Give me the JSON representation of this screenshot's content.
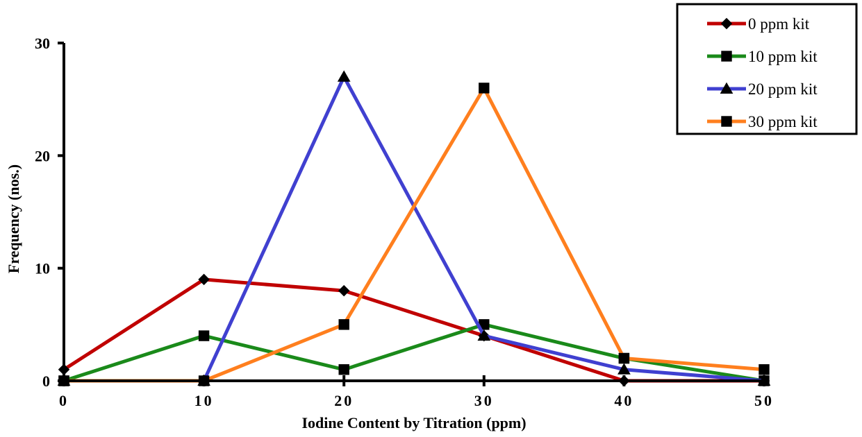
{
  "chart_data": {
    "type": "line",
    "title": "",
    "xlabel": "Iodine Content by Titration (ppm)",
    "ylabel": "Frequency (nos.)",
    "x": [
      0,
      10,
      20,
      30,
      40,
      50
    ],
    "xlim": [
      0,
      50
    ],
    "ylim": [
      0,
      30
    ],
    "xticks": [
      0,
      10,
      20,
      30,
      40,
      50
    ],
    "yticks": [
      0,
      10,
      20,
      30
    ],
    "grid": false,
    "legend_position": "top-right",
    "series": [
      {
        "name": "0 ppm kit",
        "values": [
          1,
          9,
          8,
          4,
          0,
          0
        ],
        "color": "#c00000",
        "marker": "diamond"
      },
      {
        "name": "10 ppm kit",
        "values": [
          0,
          4,
          1,
          5,
          2,
          0
        ],
        "color": "#1a8a1a",
        "marker": "square"
      },
      {
        "name": "20 ppm kit",
        "values": [
          0,
          0,
          27,
          4,
          1,
          0
        ],
        "color": "#4040d0",
        "marker": "triangle"
      },
      {
        "name": "30 ppm kit",
        "values": [
          0,
          0,
          5,
          26,
          2,
          1
        ],
        "color": "#ff7f1e",
        "marker": "square"
      }
    ]
  }
}
